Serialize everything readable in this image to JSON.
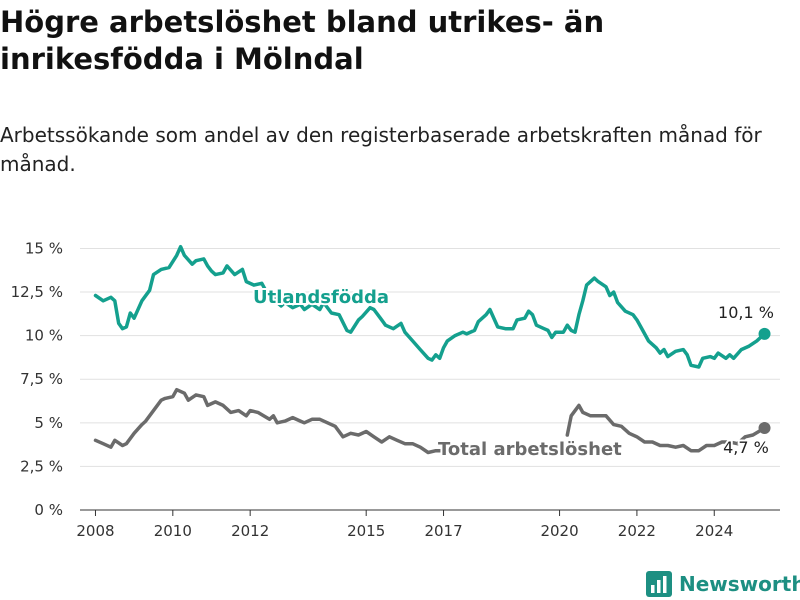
{
  "title": "Högre arbetslöshet bland utrikes- än inrikesfödda i Mölndal",
  "subtitle": "Arbetssökande som andel av den registerbaserade arbetskraften månad för månad.",
  "brand": "Newsworthy",
  "chart_data": {
    "type": "line",
    "yticks": [
      {
        "v": 0,
        "label": "0 %"
      },
      {
        "v": 2.5,
        "label": "2,5 %"
      },
      {
        "v": 5,
        "label": "5 %"
      },
      {
        "v": 7.5,
        "label": "7,5 %"
      },
      {
        "v": 10,
        "label": "10 %"
      },
      {
        "v": 12.5,
        "label": "12,5 %"
      },
      {
        "v": 15,
        "label": "15 %"
      }
    ],
    "xticks": [
      {
        "v": 2008,
        "label": "2008"
      },
      {
        "v": 2010,
        "label": "2010"
      },
      {
        "v": 2012,
        "label": "2012"
      },
      {
        "v": 2015,
        "label": "2015"
      },
      {
        "v": 2017,
        "label": "2017"
      },
      {
        "v": 2020,
        "label": "2020"
      },
      {
        "v": 2022,
        "label": "2022"
      },
      {
        "v": 2024,
        "label": "2024"
      }
    ],
    "xlim": [
      2007.6,
      2025.7
    ],
    "ylim": [
      0,
      15.6
    ],
    "grid": true,
    "series": [
      {
        "name": "Utlandsfödda",
        "color": "#14a08e",
        "end_label": "10,1 %",
        "segments": [
          [
            [
              2008.0,
              12.3
            ],
            [
              2008.2,
              12.0
            ],
            [
              2008.4,
              12.2
            ],
            [
              2008.5,
              12.0
            ],
            [
              2008.6,
              10.7
            ],
            [
              2008.7,
              10.4
            ],
            [
              2008.8,
              10.5
            ],
            [
              2008.9,
              11.3
            ],
            [
              2009.0,
              11.0
            ],
            [
              2009.2,
              12.0
            ],
            [
              2009.4,
              12.6
            ],
            [
              2009.5,
              13.5
            ],
            [
              2009.7,
              13.8
            ],
            [
              2009.9,
              13.9
            ],
            [
              2010.1,
              14.6
            ],
            [
              2010.2,
              15.1
            ],
            [
              2010.3,
              14.6
            ],
            [
              2010.5,
              14.1
            ],
            [
              2010.6,
              14.3
            ],
            [
              2010.8,
              14.4
            ],
            [
              2010.9,
              14.0
            ],
            [
              2011.0,
              13.7
            ],
            [
              2011.1,
              13.5
            ],
            [
              2011.3,
              13.6
            ],
            [
              2011.4,
              14.0
            ],
            [
              2011.6,
              13.5
            ],
            [
              2011.8,
              13.8
            ],
            [
              2011.9,
              13.1
            ],
            [
              2012.1,
              12.9
            ],
            [
              2012.3,
              13.0
            ],
            [
              2012.4,
              12.6
            ],
            [
              2012.6,
              12.2
            ],
            [
              2012.7,
              11.9
            ],
            [
              2012.8,
              11.7
            ],
            [
              2012.9,
              11.9
            ],
            [
              2013.1,
              11.6
            ],
            [
              2013.3,
              11.8
            ],
            [
              2013.4,
              11.5
            ],
            [
              2013.6,
              11.8
            ],
            [
              2013.8,
              11.5
            ],
            [
              2013.9,
              11.9
            ],
            [
              2014.1,
              11.3
            ],
            [
              2014.3,
              11.2
            ],
            [
              2014.5,
              10.3
            ],
            [
              2014.6,
              10.2
            ],
            [
              2014.8,
              10.9
            ],
            [
              2014.9,
              11.1
            ],
            [
              2015.1,
              11.6
            ],
            [
              2015.2,
              11.5
            ],
            [
              2015.4,
              10.9
            ],
            [
              2015.5,
              10.6
            ],
            [
              2015.7,
              10.4
            ],
            [
              2015.9,
              10.7
            ],
            [
              2016.0,
              10.2
            ],
            [
              2016.2,
              9.7
            ],
            [
              2016.4,
              9.2
            ],
            [
              2016.6,
              8.7
            ],
            [
              2016.7,
              8.6
            ],
            [
              2016.8,
              8.9
            ],
            [
              2016.9,
              8.7
            ],
            [
              2017.0,
              9.3
            ],
            [
              2017.1,
              9.7
            ],
            [
              2017.3,
              10.0
            ],
            [
              2017.5,
              10.2
            ],
            [
              2017.6,
              10.1
            ],
            [
              2017.8,
              10.3
            ],
            [
              2017.9,
              10.8
            ],
            [
              2018.1,
              11.2
            ],
            [
              2018.2,
              11.5
            ],
            [
              2018.4,
              10.5
            ],
            [
              2018.6,
              10.4
            ],
            [
              2018.8,
              10.4
            ],
            [
              2018.9,
              10.9
            ],
            [
              2019.1,
              11.0
            ],
            [
              2019.2,
              11.4
            ],
            [
              2019.3,
              11.2
            ],
            [
              2019.4,
              10.6
            ],
            [
              2019.6,
              10.4
            ],
            [
              2019.7,
              10.3
            ],
            [
              2019.8,
              9.9
            ],
            [
              2019.9,
              10.2
            ],
            [
              2020.1,
              10.2
            ],
            [
              2020.2,
              10.6
            ],
            [
              2020.3,
              10.3
            ],
            [
              2020.4,
              10.2
            ],
            [
              2020.5,
              11.2
            ],
            [
              2020.6,
              12.0
            ],
            [
              2020.7,
              12.9
            ],
            [
              2020.9,
              13.3
            ],
            [
              2021.0,
              13.1
            ],
            [
              2021.2,
              12.8
            ],
            [
              2021.3,
              12.3
            ],
            [
              2021.4,
              12.5
            ],
            [
              2021.5,
              11.9
            ],
            [
              2021.7,
              11.4
            ],
            [
              2021.9,
              11.2
            ],
            [
              2022.0,
              10.9
            ],
            [
              2022.1,
              10.5
            ],
            [
              2022.3,
              9.7
            ],
            [
              2022.5,
              9.3
            ],
            [
              2022.6,
              9.0
            ],
            [
              2022.7,
              9.2
            ],
            [
              2022.8,
              8.8
            ],
            [
              2023.0,
              9.1
            ],
            [
              2023.2,
              9.2
            ],
            [
              2023.3,
              8.9
            ],
            [
              2023.4,
              8.3
            ],
            [
              2023.6,
              8.2
            ],
            [
              2023.7,
              8.7
            ],
            [
              2023.9,
              8.8
            ],
            [
              2024.0,
              8.7
            ],
            [
              2024.1,
              9.0
            ],
            [
              2024.3,
              8.7
            ],
            [
              2024.4,
              8.9
            ],
            [
              2024.5,
              8.7
            ],
            [
              2024.7,
              9.2
            ],
            [
              2024.9,
              9.4
            ],
            [
              2025.1,
              9.7
            ],
            [
              2025.3,
              10.1
            ]
          ]
        ]
      },
      {
        "name": "Total arbetslöshet",
        "color": "#6b6b6b",
        "end_label": "4,7 %",
        "segments": [
          [
            [
              2008.0,
              4.0
            ],
            [
              2008.2,
              3.8
            ],
            [
              2008.4,
              3.6
            ],
            [
              2008.5,
              4.0
            ],
            [
              2008.7,
              3.7
            ],
            [
              2008.8,
              3.8
            ],
            [
              2009.0,
              4.4
            ],
            [
              2009.2,
              4.9
            ],
            [
              2009.3,
              5.1
            ],
            [
              2009.5,
              5.7
            ],
            [
              2009.7,
              6.3
            ],
            [
              2009.8,
              6.4
            ],
            [
              2010.0,
              6.5
            ],
            [
              2010.1,
              6.9
            ],
            [
              2010.3,
              6.7
            ],
            [
              2010.4,
              6.3
            ],
            [
              2010.6,
              6.6
            ],
            [
              2010.8,
              6.5
            ],
            [
              2010.9,
              6.0
            ],
            [
              2011.1,
              6.2
            ],
            [
              2011.3,
              6.0
            ],
            [
              2011.5,
              5.6
            ],
            [
              2011.7,
              5.7
            ],
            [
              2011.9,
              5.4
            ],
            [
              2012.0,
              5.7
            ],
            [
              2012.2,
              5.6
            ],
            [
              2012.5,
              5.2
            ],
            [
              2012.6,
              5.4
            ],
            [
              2012.7,
              5.0
            ],
            [
              2012.9,
              5.1
            ],
            [
              2013.1,
              5.3
            ],
            [
              2013.3,
              5.1
            ],
            [
              2013.4,
              5.0
            ],
            [
              2013.6,
              5.2
            ],
            [
              2013.8,
              5.2
            ],
            [
              2014.0,
              5.0
            ],
            [
              2014.2,
              4.8
            ],
            [
              2014.4,
              4.2
            ],
            [
              2014.6,
              4.4
            ],
            [
              2014.8,
              4.3
            ],
            [
              2015.0,
              4.5
            ],
            [
              2015.2,
              4.2
            ],
            [
              2015.4,
              3.9
            ],
            [
              2015.6,
              4.2
            ],
            [
              2015.8,
              4.0
            ],
            [
              2016.0,
              3.8
            ],
            [
              2016.2,
              3.8
            ],
            [
              2016.4,
              3.6
            ],
            [
              2016.6,
              3.3
            ],
            [
              2016.8,
              3.4
            ],
            [
              2017.0,
              3.4
            ]
          ],
          [
            [
              2020.2,
              4.3
            ],
            [
              2020.3,
              5.4
            ],
            [
              2020.5,
              6.0
            ],
            [
              2020.6,
              5.6
            ],
            [
              2020.8,
              5.4
            ],
            [
              2021.0,
              5.4
            ],
            [
              2021.2,
              5.4
            ],
            [
              2021.4,
              4.9
            ],
            [
              2021.6,
              4.8
            ],
            [
              2021.8,
              4.4
            ],
            [
              2022.0,
              4.2
            ],
            [
              2022.2,
              3.9
            ],
            [
              2022.4,
              3.9
            ],
            [
              2022.6,
              3.7
            ],
            [
              2022.8,
              3.7
            ],
            [
              2023.0,
              3.6
            ],
            [
              2023.2,
              3.7
            ],
            [
              2023.4,
              3.4
            ],
            [
              2023.6,
              3.4
            ],
            [
              2023.8,
              3.7
            ],
            [
              2024.0,
              3.7
            ],
            [
              2024.2,
              3.9
            ],
            [
              2024.4,
              3.9
            ],
            [
              2024.6,
              3.8
            ],
            [
              2024.8,
              4.2
            ],
            [
              2025.0,
              4.3
            ],
            [
              2025.3,
              4.7
            ]
          ]
        ]
      }
    ]
  }
}
